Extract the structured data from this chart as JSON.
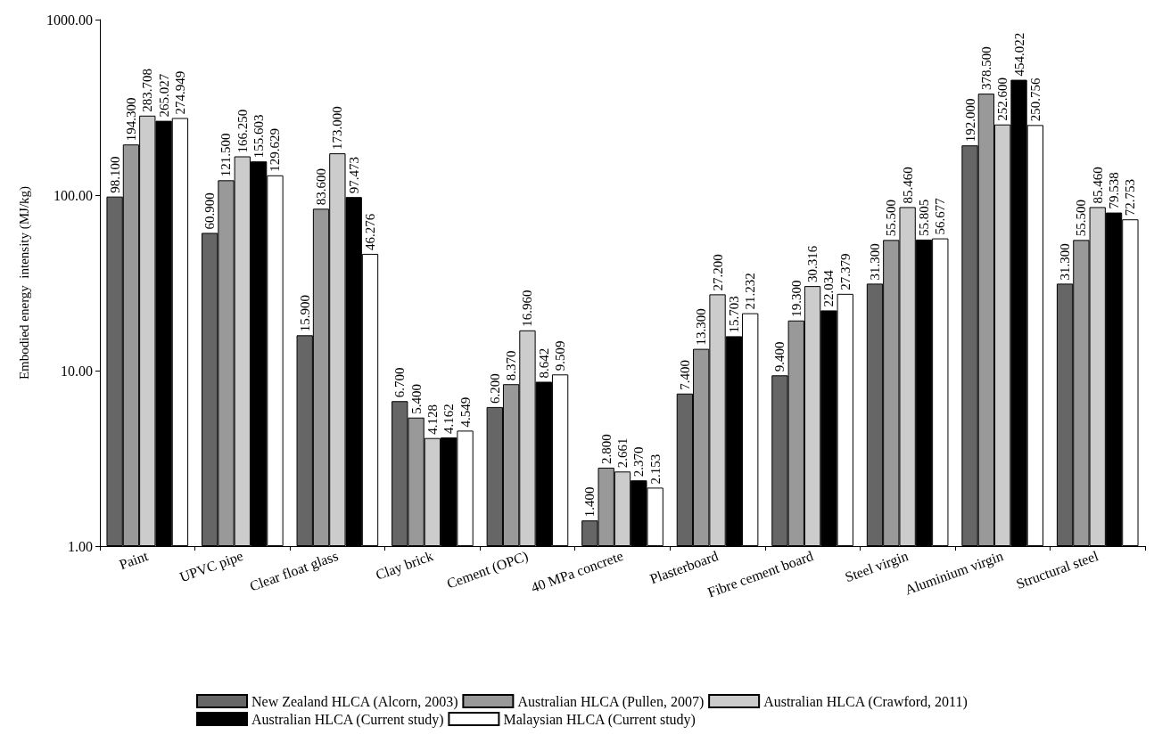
{
  "chart_data": {
    "type": "bar",
    "ylabel": "Embodied energy  intensity (MJ/kg)",
    "categories": [
      "Paint",
      "UPVC pipe",
      "Clear float glass",
      "Clay brick",
      "Cement (OPC)",
      "40 MPa concrete",
      "Plasterboard",
      "Fibre cement board",
      "Steel virgin",
      "Aluminium virgin",
      "Structural steel"
    ],
    "series": [
      {
        "name": "New Zealand HLCA (Alcorn, 2003)",
        "color": "#666666",
        "values": [
          98.1,
          60.9,
          15.9,
          6.7,
          6.2,
          1.4,
          7.4,
          9.4,
          31.3,
          192.0,
          31.3
        ],
        "value_labels": [
          "98.100",
          "60.900",
          "15.900",
          "6.700",
          "6.200",
          "1.400",
          "7.400",
          "9.400",
          "31.300",
          "192.000",
          "31.300"
        ]
      },
      {
        "name": "Australian HLCA (Pullen, 2007)",
        "color": "#999999",
        "values": [
          194.3,
          121.5,
          83.6,
          5.4,
          8.37,
          2.8,
          13.3,
          19.3,
          55.5,
          378.5,
          55.5
        ],
        "value_labels": [
          "194.300",
          "121.500",
          "83.600",
          "5.400",
          "8.370",
          "2.800",
          "13.300",
          "19.300",
          "55.500",
          "378.500",
          "55.500"
        ]
      },
      {
        "name": "Australian HLCA (Crawford, 2011)",
        "color": "#cccccc",
        "values": [
          283.708,
          166.25,
          173.0,
          4.128,
          16.96,
          2.661,
          27.2,
          30.316,
          85.46,
          252.6,
          85.46
        ],
        "value_labels": [
          "283.708",
          "166.250",
          "173.000",
          "4.128",
          "16.960",
          "2.661",
          "27.200",
          "30.316",
          "85.460",
          "252.600",
          "85.460"
        ]
      },
      {
        "name": "Australian HLCA (Current study)",
        "color": "#000000",
        "values": [
          265.027,
          155.603,
          97.473,
          4.162,
          8.642,
          2.37,
          15.703,
          22.034,
          55.805,
          454.022,
          79.538
        ],
        "value_labels": [
          "265.027",
          "155.603",
          "97.473",
          "4.162",
          "8.642",
          "2.370",
          "15.703",
          "22.034",
          "55.805",
          "454.022",
          "79.538"
        ]
      },
      {
        "name": "Malaysian HLCA (Current study)",
        "color": "#ffffff",
        "values": [
          274.949,
          129.629,
          46.276,
          4.549,
          9.509,
          2.153,
          21.232,
          27.379,
          56.677,
          250.756,
          72.753
        ],
        "value_labels": [
          "274.949",
          "129.629",
          "46.276",
          "4.549",
          "9.509",
          "2.153",
          "21.232",
          "27.379",
          "56.677",
          "250.756",
          "72.753"
        ]
      }
    ],
    "log": "y",
    "ylim": [
      1,
      1000
    ],
    "yticks": [
      {
        "value": 1,
        "label": "1.00"
      },
      {
        "value": 10,
        "label": "10.00"
      },
      {
        "value": 100,
        "label": "100.00"
      },
      {
        "value": 1000,
        "label": "1000.00"
      }
    ],
    "grid": false,
    "legend": "bottom"
  }
}
